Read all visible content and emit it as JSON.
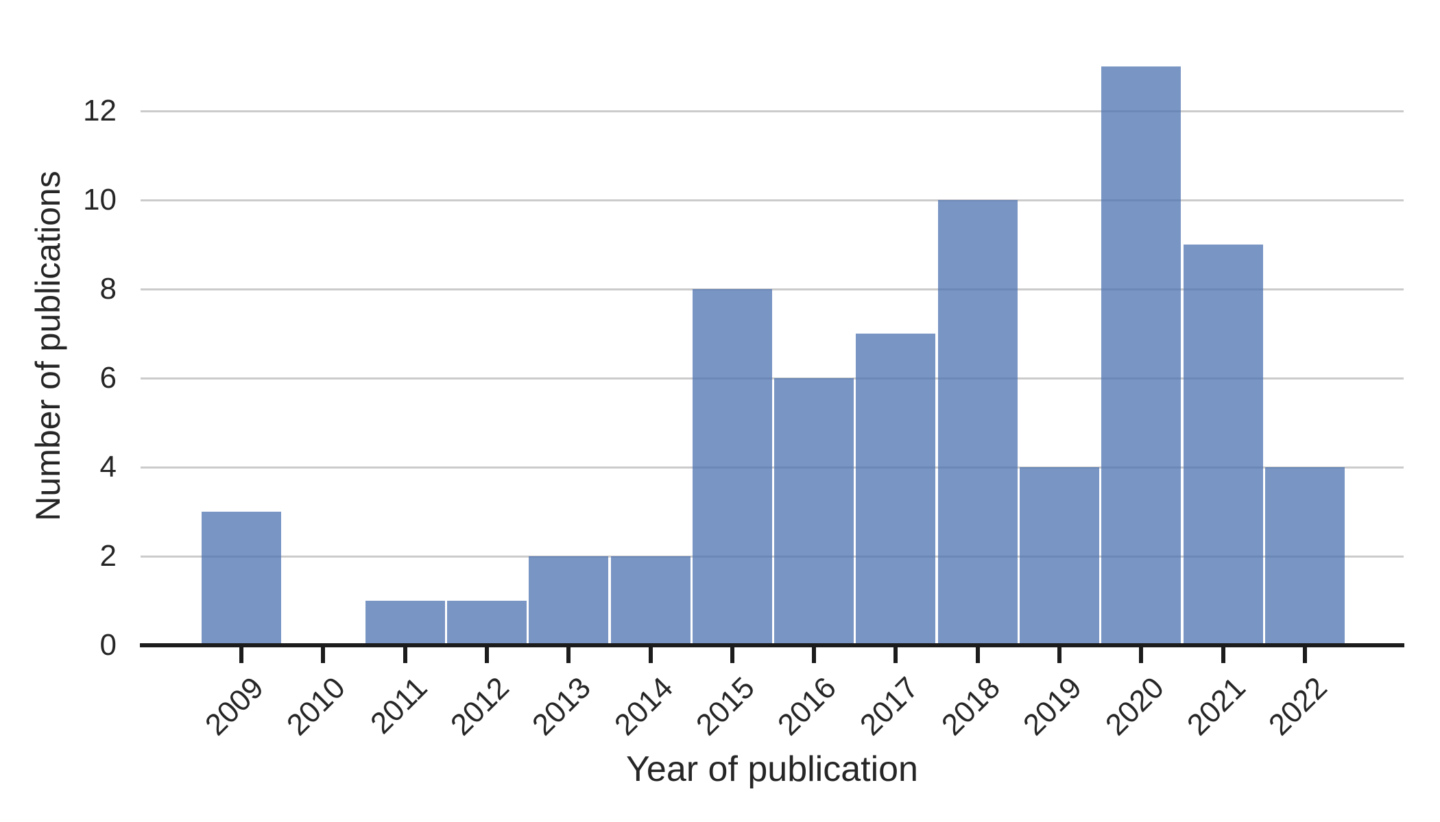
{
  "chart_data": {
    "type": "bar",
    "title": "",
    "xlabel": "Year of publication",
    "ylabel": "Number of publications",
    "categories": [
      "2009",
      "2010",
      "2011",
      "2012",
      "2013",
      "2014",
      "2015",
      "2016",
      "2017",
      "2018",
      "2019",
      "2020",
      "2021",
      "2022"
    ],
    "values": [
      3,
      0,
      1,
      1,
      2,
      2,
      8,
      6,
      7,
      10,
      4,
      13,
      9,
      4
    ],
    "yticks": [
      0,
      2,
      4,
      6,
      8,
      10,
      12
    ],
    "ylim": [
      0,
      13.8
    ],
    "grid": true,
    "legend": null,
    "colors": {
      "bar_fill": "#4C72B0",
      "bar_alpha": 0.75,
      "gridline": "#cbcbcb",
      "axis_line": "#1c1c1c",
      "text": "#262626",
      "background": "#ffffff"
    }
  }
}
